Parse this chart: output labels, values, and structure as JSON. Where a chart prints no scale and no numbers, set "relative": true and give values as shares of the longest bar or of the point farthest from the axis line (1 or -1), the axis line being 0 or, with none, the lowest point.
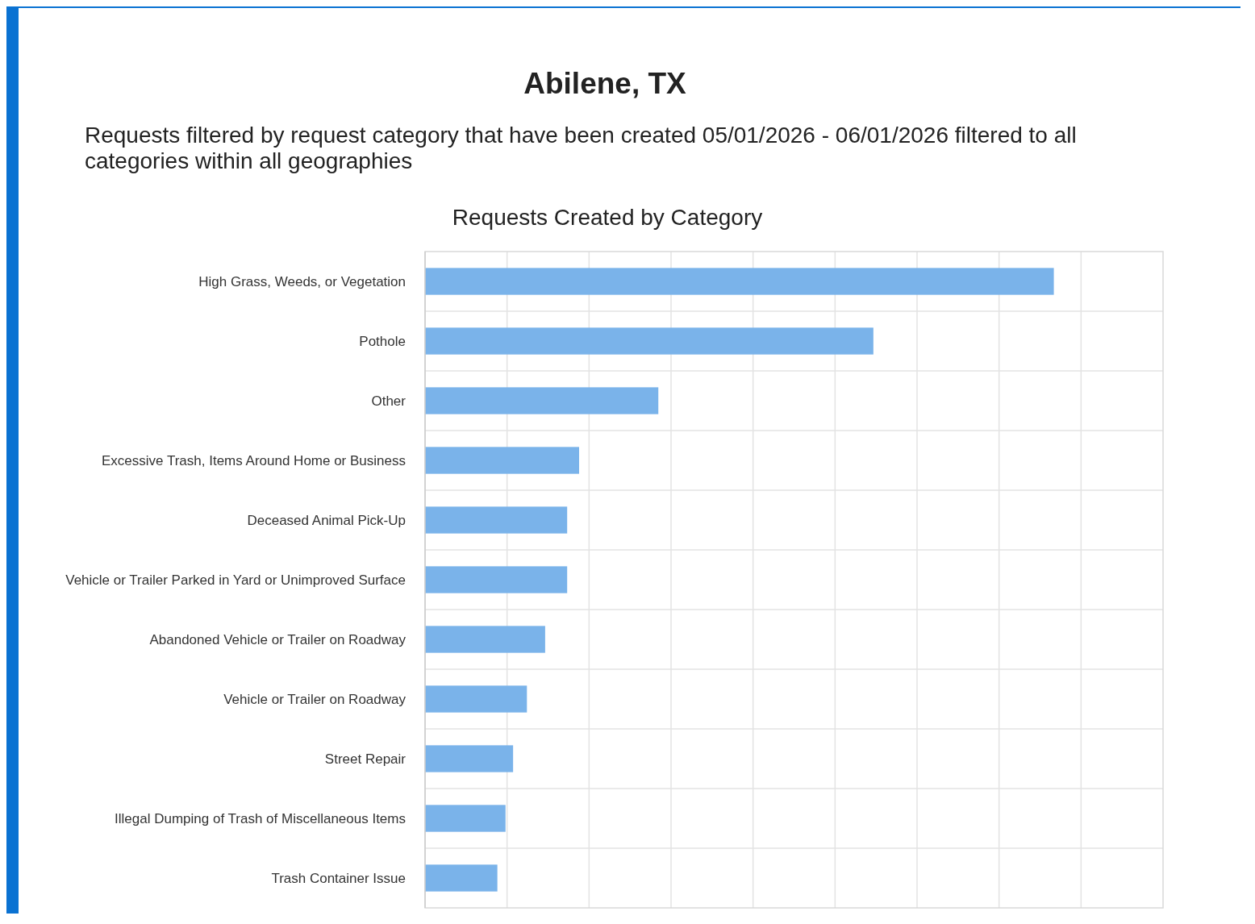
{
  "chart_data": {
    "type": "bar",
    "title": "Requests Created by Category",
    "annotations": [
      "Abilene, TX",
      "Requests filtered by request category that have been created 05/01/2026 - 06/01/2026 filtered to all categories within all geographies"
    ],
    "orientation": "horizontal",
    "relative": true,
    "grid": true,
    "categories": [
      "High Grass, Weeds, or Vegetation",
      "Pothole",
      "Other",
      "Excessive Trash, Items Around Home or Business",
      "Deceased Animal Pick-Up",
      "Vehicle or Trailer Parked in Yard or Unimproved Surface",
      "Abandoned Vehicle or Trailer on Roadway",
      "Vehicle or Trailer on Roadway",
      "Street Repair",
      "Illegal Dumping of Trash of Miscellaneous Items",
      "Trash Container Issue"
    ],
    "values": [
      1,
      0.713,
      0.371,
      0.245,
      0.226,
      0.226,
      0.191,
      0.162,
      0.14,
      0.128,
      0.115
    ],
    "color": "#7ab3ea"
  }
}
